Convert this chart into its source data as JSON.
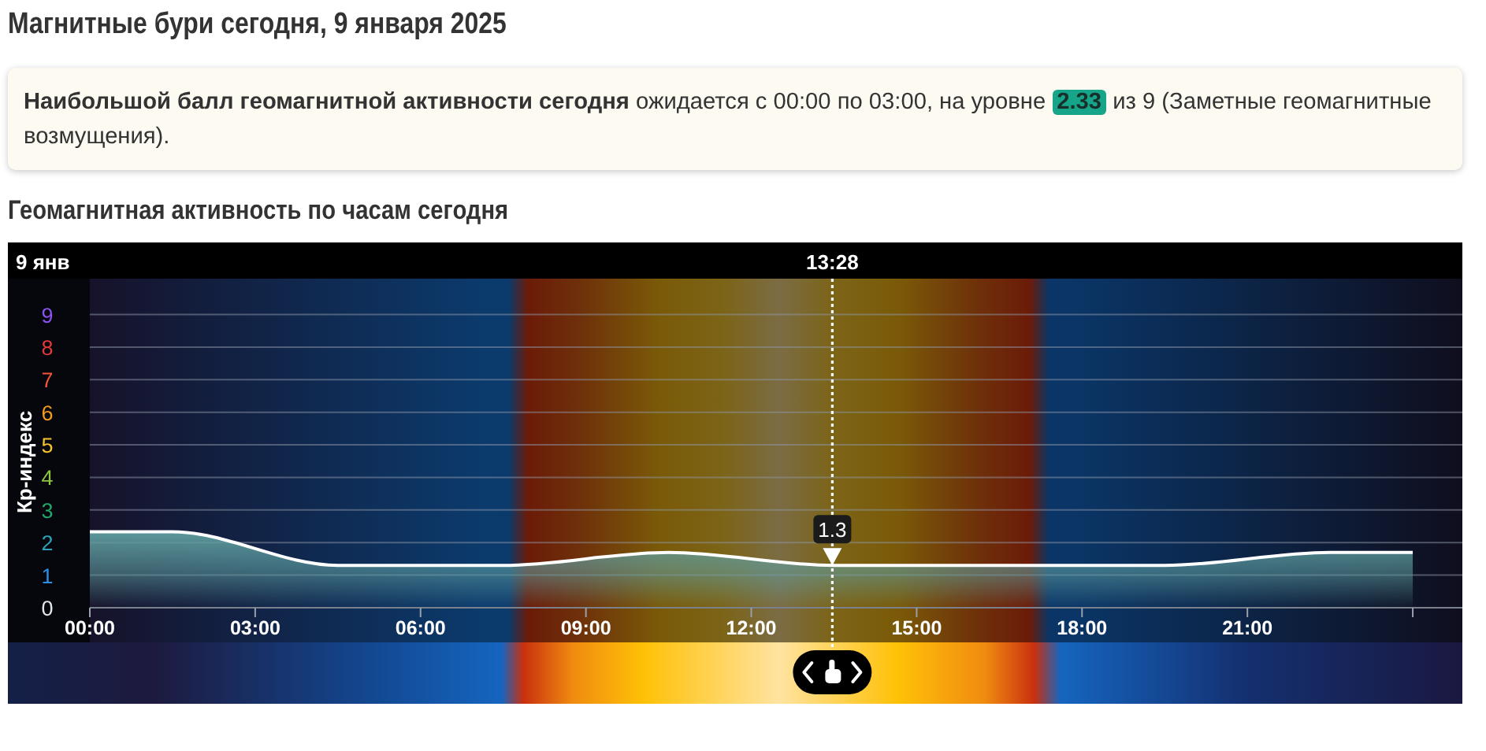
{
  "chart_data": {
    "type": "area",
    "title": "Магнитные бури сегодня, 9 января 2025",
    "subtitle": "Геомагнитная активность по часам сегодня",
    "ylabel": "Кр-индекс",
    "annotations": [
      "Наибольшой балл геомагнитной активности сегодня",
      "ожидается с 00:00 по 03:00, на уровне",
      "2.33",
      "из 9 (Заметные геомагнитные возмущения).",
      "9 янв",
      {
        "text": "1.3",
        "x": 13.47,
        "y": 1.3
      }
    ],
    "x": [
      0,
      1.5,
      4.5,
      7.5,
      10.5,
      13.5,
      16.5,
      19.5,
      22.5,
      24
    ],
    "series": [
      {
        "color": "#5f9ea0",
        "values": [
          2.33,
          2.33,
          1.3,
          1.3,
          1.7,
          1.3,
          1.3,
          1.3,
          1.7,
          1.7
        ]
      }
    ],
    "xlim": [
      0,
      24.9
    ],
    "xticks": [
      {
        "value": 0,
        "label": "00:00"
      },
      {
        "value": 3,
        "label": "03:00"
      },
      {
        "value": 6,
        "label": "06:00"
      },
      {
        "value": 9,
        "label": "09:00"
      },
      {
        "value": 12,
        "label": "12:00"
      },
      {
        "value": 15,
        "label": "15:00"
      },
      {
        "value": 18,
        "label": "18:00"
      },
      {
        "value": 21,
        "label": "21:00"
      },
      {
        "value": 24,
        "label": null
      }
    ],
    "ylim": [
      0,
      10.1
    ],
    "yticks": [
      0,
      1,
      2,
      3,
      4,
      5,
      6,
      7,
      8,
      9
    ],
    "grid": "y",
    "ref_lines": [
      {
        "axis": "x",
        "value": 13.47,
        "label": "13:28",
        "line_style": "dotted",
        "color": "#ffffff"
      }
    ],
    "bands": [
      {
        "axis": "x",
        "from": 7.6,
        "to": 17.4,
        "color": "#7b6c44"
      }
    ]
  }
}
